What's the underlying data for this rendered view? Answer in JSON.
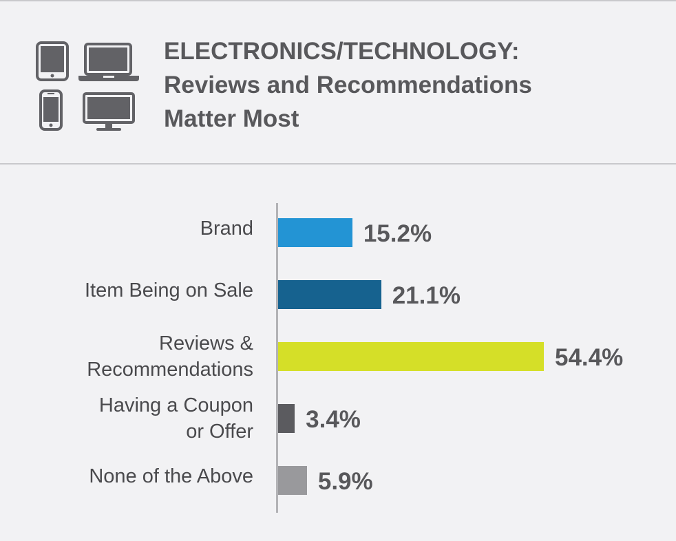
{
  "header": {
    "title_lines": [
      "ELECTRONICS/TECHNOLOGY:",
      "Reviews and Recommendations",
      "Matter Most"
    ],
    "icons": [
      "tablet-icon",
      "laptop-icon",
      "smartphone-icon",
      "monitor-icon"
    ]
  },
  "colors": {
    "background": "#f2f2f4",
    "title_text": "#58585b",
    "icon": "#626266",
    "rule": "#c9c9cc"
  },
  "chart_data": {
    "type": "bar",
    "orientation": "horizontal",
    "title": "",
    "xlabel": "",
    "ylabel": "",
    "xlim": [
      0,
      60
    ],
    "grid": false,
    "categories": [
      [
        "Brand"
      ],
      [
        "Item Being on Sale"
      ],
      [
        "Reviews &",
        "Recommendations"
      ],
      [
        "Having a Coupon",
        "or Offer"
      ],
      [
        "None of the Above"
      ]
    ],
    "values": [
      15.2,
      21.1,
      54.4,
      3.4,
      5.9
    ],
    "value_labels": [
      "15.2%",
      "21.1%",
      "54.4%",
      "3.4%",
      "5.9%"
    ],
    "bar_colors": [
      "#2394d4",
      "#16628f",
      "#d5df28",
      "#5b5b5f",
      "#99999c"
    ]
  }
}
